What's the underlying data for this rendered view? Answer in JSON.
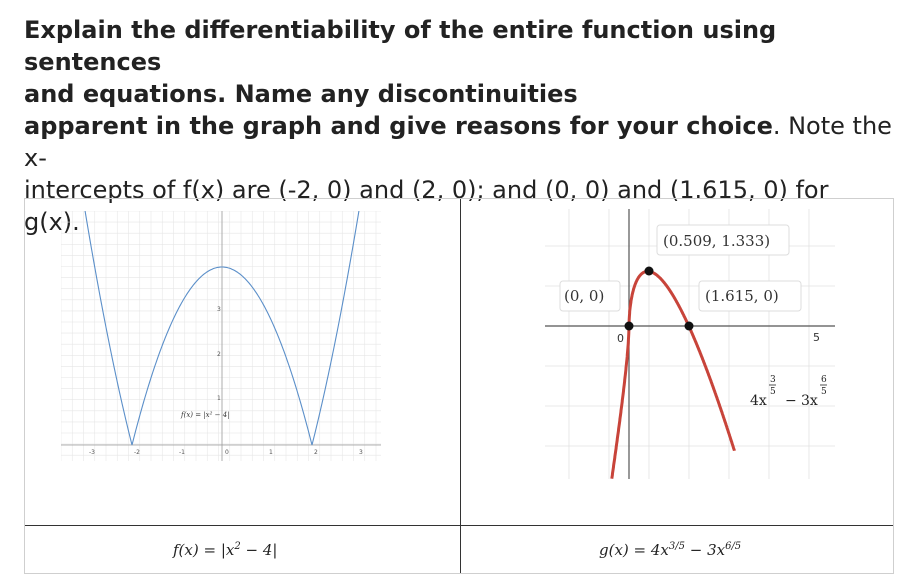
{
  "question": {
    "bold_line_1": "Explain the differentiability of the entire function using sentences",
    "bold_line_2": "and equations. Name any discontinuities",
    "bold_line_3": "apparent in the graph and give reasons for your choice",
    "regular_1": ". Note the x-",
    "regular_2": "intercepts of f(x) are (-2, 0) and (2, 0); and (0, 0) and (1.615, 0) for",
    "regular_3": "g(x)."
  },
  "left_graph": {
    "function_label": "f(x) = |x² − 4|",
    "x_ticks": [
      "-3",
      "-2",
      "-1",
      "0",
      "1",
      "2",
      "3"
    ],
    "y_ticks": [
      "1",
      "2",
      "3"
    ],
    "line_color": "#5b8fc9"
  },
  "right_graph": {
    "points": [
      {
        "label": "(0.509, 1.333)"
      },
      {
        "label": "(0, 0)"
      },
      {
        "label": "(1.615, 0)"
      }
    ],
    "origin_label": "0",
    "x_tick_label": "5",
    "expr_coef1": "4x",
    "expr_exp1_num": "3",
    "expr_exp1_den": "5",
    "expr_minus": "−",
    "expr_coef2": "3x",
    "expr_exp2_num": "6",
    "expr_exp2_den": "5",
    "curve_color": "#c8443a"
  },
  "captions": {
    "left_main": "f(x) = |x",
    "left_sup": "2",
    "left_tail": " − 4|",
    "right_main": "g(x) = 4x",
    "right_sup1": "3/5",
    "right_mid": " − 3x",
    "right_sup2": "6/5"
  }
}
